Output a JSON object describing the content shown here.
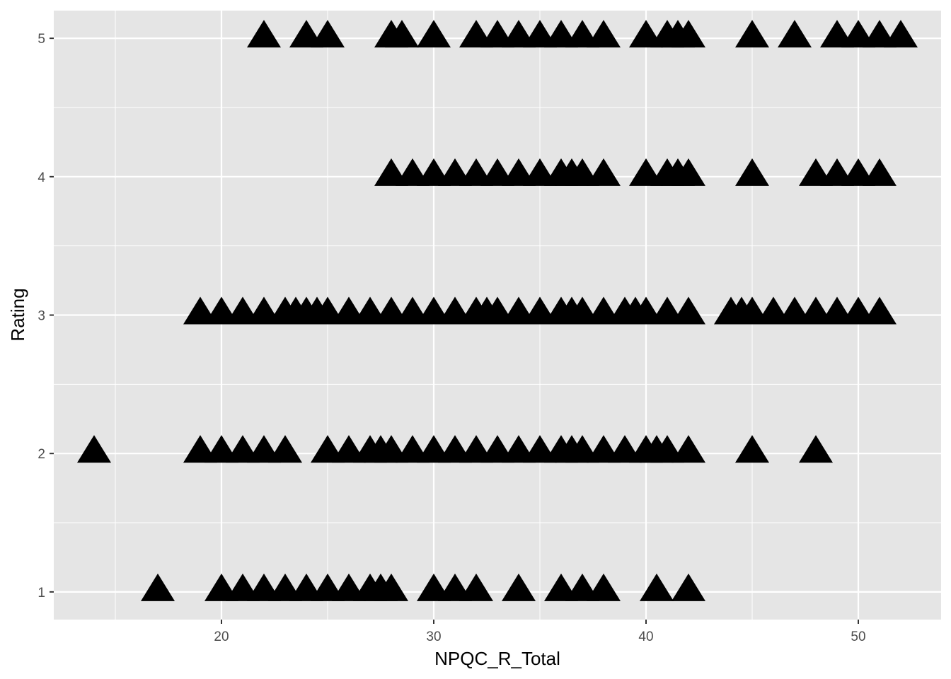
{
  "chart_data": {
    "type": "scatter",
    "xlabel": "NPQC_R_Total",
    "ylabel": "Rating",
    "xlim": [
      12.1,
      53.9
    ],
    "ylim": [
      0.8,
      5.2
    ],
    "x_ticks": [
      20,
      30,
      40,
      50
    ],
    "x_tick_labels": [
      "20",
      "30",
      "40",
      "50"
    ],
    "y_ticks": [
      1,
      2,
      3,
      4,
      5
    ],
    "y_tick_labels": [
      "1",
      "2",
      "3",
      "4",
      "5"
    ],
    "grid": true,
    "marker": "filled-triangle",
    "marker_color": "#000000",
    "panel_color": "#e5e5e5",
    "grid_color": "#ffffff",
    "points": [
      [
        22,
        5
      ],
      [
        24,
        5
      ],
      [
        25,
        5
      ],
      [
        28,
        5
      ],
      [
        28.5,
        5
      ],
      [
        30,
        5
      ],
      [
        32,
        5
      ],
      [
        33,
        5
      ],
      [
        34,
        5
      ],
      [
        35,
        5
      ],
      [
        36,
        5
      ],
      [
        37,
        5
      ],
      [
        38,
        5
      ],
      [
        40,
        5
      ],
      [
        41,
        5
      ],
      [
        41.5,
        5
      ],
      [
        42,
        5
      ],
      [
        45,
        5
      ],
      [
        47,
        5
      ],
      [
        49,
        5
      ],
      [
        50,
        5
      ],
      [
        51,
        5
      ],
      [
        52,
        5
      ],
      [
        28,
        4
      ],
      [
        29,
        4
      ],
      [
        30,
        4
      ],
      [
        31,
        4
      ],
      [
        32,
        4
      ],
      [
        33,
        4
      ],
      [
        34,
        4
      ],
      [
        35,
        4
      ],
      [
        36,
        4
      ],
      [
        36.5,
        4
      ],
      [
        37,
        4
      ],
      [
        38,
        4
      ],
      [
        40,
        4
      ],
      [
        41,
        4
      ],
      [
        41.5,
        4
      ],
      [
        42,
        4
      ],
      [
        45,
        4
      ],
      [
        48,
        4
      ],
      [
        49,
        4
      ],
      [
        50,
        4
      ],
      [
        51,
        4
      ],
      [
        19,
        3
      ],
      [
        20,
        3
      ],
      [
        21,
        3
      ],
      [
        22,
        3
      ],
      [
        23,
        3
      ],
      [
        23.5,
        3
      ],
      [
        24,
        3
      ],
      [
        24.5,
        3
      ],
      [
        25,
        3
      ],
      [
        26,
        3
      ],
      [
        27,
        3
      ],
      [
        28,
        3
      ],
      [
        29,
        3
      ],
      [
        30,
        3
      ],
      [
        31,
        3
      ],
      [
        32,
        3
      ],
      [
        32.5,
        3
      ],
      [
        33,
        3
      ],
      [
        34,
        3
      ],
      [
        35,
        3
      ],
      [
        36,
        3
      ],
      [
        36.5,
        3
      ],
      [
        37,
        3
      ],
      [
        38,
        3
      ],
      [
        39,
        3
      ],
      [
        39.5,
        3
      ],
      [
        40,
        3
      ],
      [
        41,
        3
      ],
      [
        42,
        3
      ],
      [
        44,
        3
      ],
      [
        44.5,
        3
      ],
      [
        45,
        3
      ],
      [
        46,
        3
      ],
      [
        47,
        3
      ],
      [
        48,
        3
      ],
      [
        49,
        3
      ],
      [
        50,
        3
      ],
      [
        51,
        3
      ],
      [
        14,
        2
      ],
      [
        19,
        2
      ],
      [
        20,
        2
      ],
      [
        21,
        2
      ],
      [
        22,
        2
      ],
      [
        23,
        2
      ],
      [
        25,
        2
      ],
      [
        26,
        2
      ],
      [
        27,
        2
      ],
      [
        27.5,
        2
      ],
      [
        28,
        2
      ],
      [
        29,
        2
      ],
      [
        30,
        2
      ],
      [
        31,
        2
      ],
      [
        32,
        2
      ],
      [
        33,
        2
      ],
      [
        34,
        2
      ],
      [
        35,
        2
      ],
      [
        36,
        2
      ],
      [
        36.5,
        2
      ],
      [
        37,
        2
      ],
      [
        38,
        2
      ],
      [
        39,
        2
      ],
      [
        40,
        2
      ],
      [
        40.5,
        2
      ],
      [
        41,
        2
      ],
      [
        42,
        2
      ],
      [
        45,
        2
      ],
      [
        48,
        2
      ],
      [
        17,
        1
      ],
      [
        20,
        1
      ],
      [
        21,
        1
      ],
      [
        22,
        1
      ],
      [
        23,
        1
      ],
      [
        24,
        1
      ],
      [
        25,
        1
      ],
      [
        26,
        1
      ],
      [
        27,
        1
      ],
      [
        27.5,
        1
      ],
      [
        28,
        1
      ],
      [
        30,
        1
      ],
      [
        31,
        1
      ],
      [
        32,
        1
      ],
      [
        34,
        1
      ],
      [
        36,
        1
      ],
      [
        37,
        1
      ],
      [
        38,
        1
      ],
      [
        40.5,
        1
      ],
      [
        42,
        1
      ]
    ]
  }
}
